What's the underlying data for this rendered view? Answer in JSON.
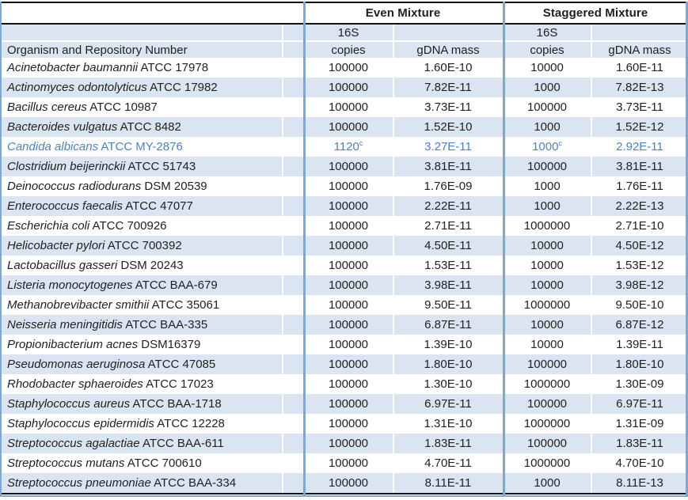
{
  "table": {
    "organism_header": "Organism and Repository Number",
    "col_groups": [
      {
        "label": "Even Mixture"
      },
      {
        "label": "Staggered Mixture"
      }
    ],
    "sub_headers": {
      "copies_line1": "16S",
      "copies_line2": "copies",
      "gdna": "gDNA mass"
    },
    "colors": {
      "stripe": "#dbe5f1",
      "border_blue": "#7fa6d1",
      "line_black": "#121212",
      "highlight_text": "#4f81bd",
      "text": "#1f1f1f"
    },
    "footnote_marker": "c",
    "rows": [
      {
        "organism": "Acinetobacter baumannii",
        "repository": "ATCC 17978",
        "even_copies": "100000",
        "even_sup": "",
        "even_gdna": "1.60E-10",
        "stag_copies": "10000",
        "stag_sup": "",
        "stag_gdna": "1.60E-11",
        "highlight": false
      },
      {
        "organism": "Actinomyces odontolyticus",
        "repository": "ATCC 17982",
        "even_copies": "100000",
        "even_sup": "",
        "even_gdna": "7.82E-11",
        "stag_copies": "1000",
        "stag_sup": "",
        "stag_gdna": "7.82E-13",
        "highlight": false
      },
      {
        "organism": "Bacillus cereus",
        "repository": "ATCC 10987",
        "even_copies": "100000",
        "even_sup": "",
        "even_gdna": "3.73E-11",
        "stag_copies": "100000",
        "stag_sup": "",
        "stag_gdna": "3.73E-11",
        "highlight": false
      },
      {
        "organism": "Bacteroides vulgatus",
        "repository": "ATCC 8482",
        "even_copies": "100000",
        "even_sup": "",
        "even_gdna": "1.52E-10",
        "stag_copies": "1000",
        "stag_sup": "",
        "stag_gdna": "1.52E-12",
        "highlight": false
      },
      {
        "organism": "Candida albicans",
        "repository": "ATCC MY-2876",
        "even_copies": "1120",
        "even_sup": "c",
        "even_gdna": "3.27E-11",
        "stag_copies": "1000",
        "stag_sup": "c",
        "stag_gdna": "2.92E-11",
        "highlight": true
      },
      {
        "organism": "Clostridium beijerinckii",
        "repository": "ATCC 51743",
        "even_copies": "100000",
        "even_sup": "",
        "even_gdna": "3.81E-11",
        "stag_copies": "100000",
        "stag_sup": "",
        "stag_gdna": "3.81E-11",
        "highlight": false
      },
      {
        "organism": "Deinococcus radiodurans",
        "repository": "DSM 20539",
        "even_copies": "100000",
        "even_sup": "",
        "even_gdna": "1.76E-09",
        "stag_copies": "1000",
        "stag_sup": "",
        "stag_gdna": "1.76E-11",
        "highlight": false
      },
      {
        "organism": "Enterococcus faecalis",
        "repository": "ATCC 47077",
        "even_copies": "100000",
        "even_sup": "",
        "even_gdna": "2.22E-11",
        "stag_copies": "1000",
        "stag_sup": "",
        "stag_gdna": "2.22E-13",
        "highlight": false
      },
      {
        "organism": "Escherichia coli",
        "repository": "ATCC 700926",
        "even_copies": "100000",
        "even_sup": "",
        "even_gdna": "2.71E-11",
        "stag_copies": "1000000",
        "stag_sup": "",
        "stag_gdna": "2.71E-10",
        "highlight": false
      },
      {
        "organism": "Helicobacter pylori",
        "repository": "ATCC 700392",
        "even_copies": "100000",
        "even_sup": "",
        "even_gdna": "4.50E-11",
        "stag_copies": "10000",
        "stag_sup": "",
        "stag_gdna": "4.50E-12",
        "highlight": false
      },
      {
        "organism": "Lactobacillus gasseri",
        "repository": "DSM 20243",
        "even_copies": "100000",
        "even_sup": "",
        "even_gdna": "1.53E-11",
        "stag_copies": "10000",
        "stag_sup": "",
        "stag_gdna": "1.53E-12",
        "highlight": false
      },
      {
        "organism": "Listeria monocytogenes",
        "repository": "ATCC BAA-679",
        "even_copies": "100000",
        "even_sup": "",
        "even_gdna": "3.98E-11",
        "stag_copies": "10000",
        "stag_sup": "",
        "stag_gdna": "3.98E-12",
        "highlight": false
      },
      {
        "organism": "Methanobrevibacter smithii",
        "repository": "ATCC 35061",
        "even_copies": "100000",
        "even_sup": "",
        "even_gdna": "9.50E-11",
        "stag_copies": "1000000",
        "stag_sup": "",
        "stag_gdna": "9.50E-10",
        "highlight": false
      },
      {
        "organism": "Neisseria meningitidis",
        "repository": "ATCC BAA-335",
        "even_copies": "100000",
        "even_sup": "",
        "even_gdna": "6.87E-11",
        "stag_copies": "10000",
        "stag_sup": "",
        "stag_gdna": "6.87E-12",
        "highlight": false
      },
      {
        "organism": "Propionibacterium acnes",
        "repository": "DSM16379",
        "even_copies": "100000",
        "even_sup": "",
        "even_gdna": "1.39E-10",
        "stag_copies": "10000",
        "stag_sup": "",
        "stag_gdna": "1.39E-11",
        "highlight": false
      },
      {
        "organism": "Pseudomonas aeruginosa",
        "repository": "ATCC 47085",
        "even_copies": "100000",
        "even_sup": "",
        "even_gdna": "1.80E-10",
        "stag_copies": "100000",
        "stag_sup": "",
        "stag_gdna": "1.80E-10",
        "highlight": false
      },
      {
        "organism": "Rhodobacter sphaeroides",
        "repository": "ATCC 17023",
        "even_copies": "100000",
        "even_sup": "",
        "even_gdna": "1.30E-10",
        "stag_copies": "1000000",
        "stag_sup": "",
        "stag_gdna": "1.30E-09",
        "highlight": false
      },
      {
        "organism": "Staphylococcus aureus",
        "repository": "ATCC BAA-1718",
        "even_copies": "100000",
        "even_sup": "",
        "even_gdna": "6.97E-11",
        "stag_copies": "100000",
        "stag_sup": "",
        "stag_gdna": "6.97E-11",
        "highlight": false
      },
      {
        "organism": "Staphylococcus epidermidis",
        "repository": "ATCC 12228",
        "even_copies": "100000",
        "even_sup": "",
        "even_gdna": "1.31E-10",
        "stag_copies": "1000000",
        "stag_sup": "",
        "stag_gdna": "1.31E-09",
        "highlight": false
      },
      {
        "organism": "Streptococcus agalactiae",
        "repository": "ATCC BAA-611",
        "even_copies": "100000",
        "even_sup": "",
        "even_gdna": "1.83E-11",
        "stag_copies": "100000",
        "stag_sup": "",
        "stag_gdna": "1.83E-11",
        "highlight": false
      },
      {
        "organism": "Streptococcus mutans",
        "repository": "ATCC 700610",
        "even_copies": "100000",
        "even_sup": "",
        "even_gdna": "4.70E-11",
        "stag_copies": "1000000",
        "stag_sup": "",
        "stag_gdna": "4.70E-10",
        "highlight": false
      },
      {
        "organism": "Streptococcus pneumoniae",
        "repository": "ATCC BAA-334",
        "even_copies": "100000",
        "even_sup": "",
        "even_gdna": "8.11E-11",
        "stag_copies": "1000",
        "stag_sup": "",
        "stag_gdna": "8.11E-13",
        "highlight": false
      }
    ]
  }
}
